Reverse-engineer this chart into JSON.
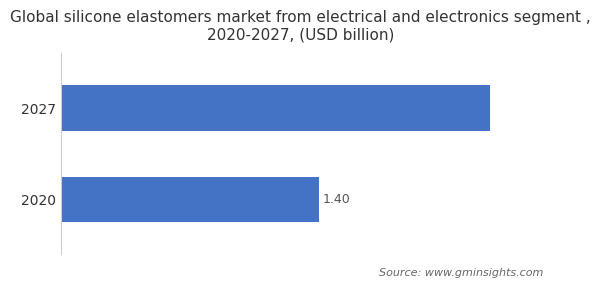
{
  "title": "Global silicone elastomers market from electrical and electronics segment ,\n2020-2027, (USD billion)",
  "categories": [
    "2020",
    "2027"
  ],
  "values": [
    1.4,
    2.33
  ],
  "bar_color": "#4472c4",
  "label_2020": "1.40",
  "source_text": "Source: www.gminsights.com",
  "xlim": [
    0,
    2.6
  ],
  "bar_height": 0.5,
  "title_fontsize": 11,
  "label_fontsize": 9,
  "tick_fontsize": 10,
  "source_fontsize": 8,
  "background_color": "#ffffff"
}
